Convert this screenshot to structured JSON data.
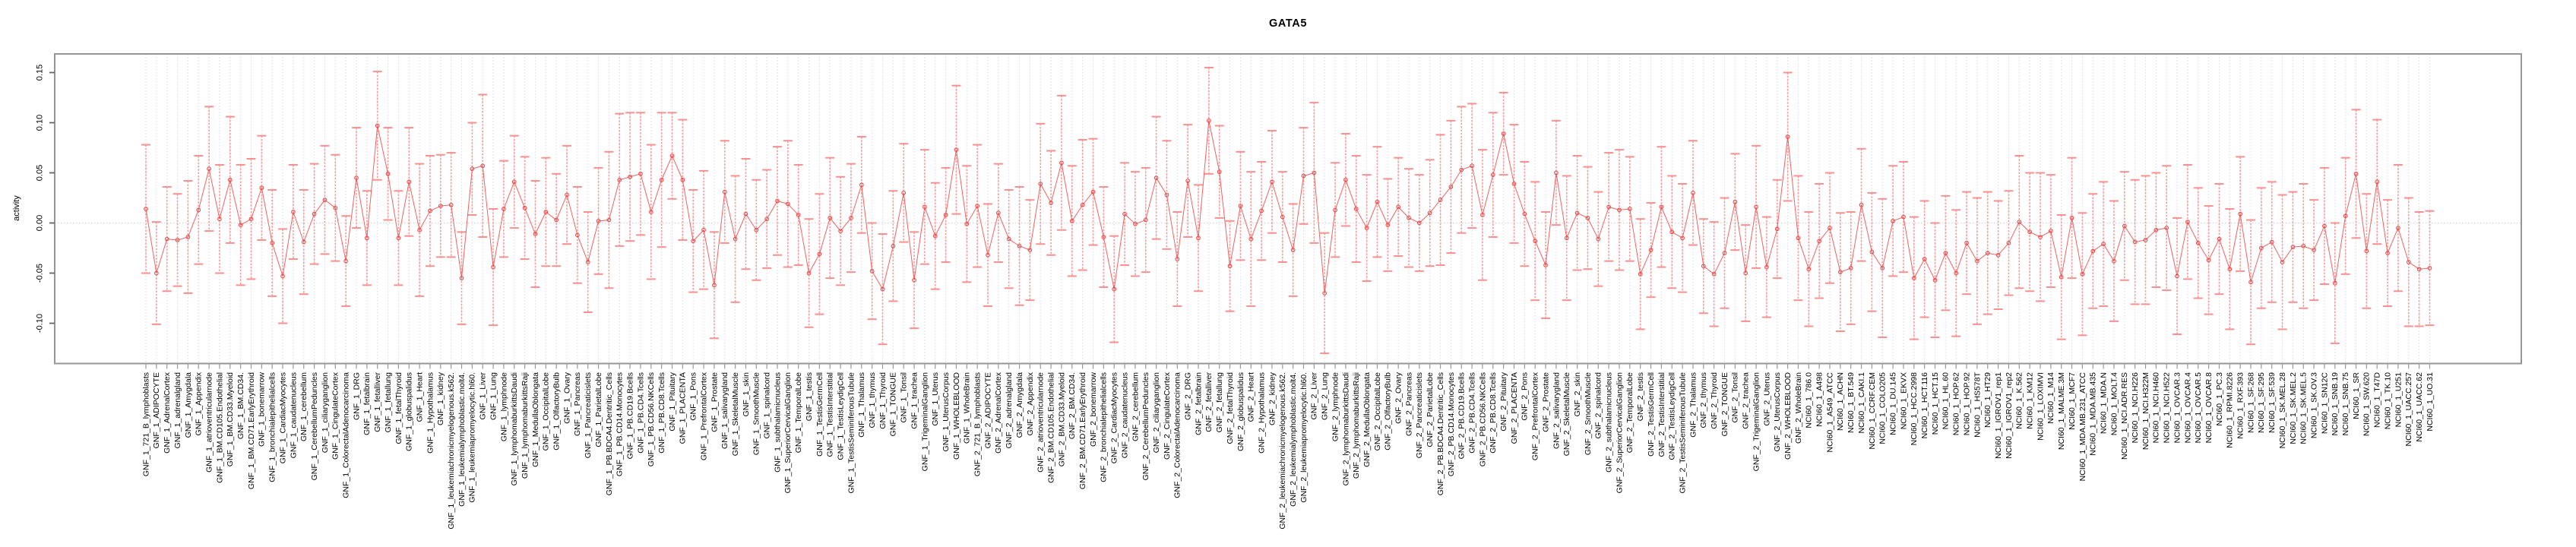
{
  "chart_data": {
    "type": "line",
    "subtype": "points-with-error-bars",
    "title": "GATA5",
    "ylabel": "activity",
    "xlabel": "",
    "legend_position": "none",
    "grid": {
      "vertical_dotted_per_category": true,
      "horizontal_zero_line_dotted": true
    },
    "ylim": [
      -0.139,
      0.169
    ],
    "ytick_values": [
      -0.1,
      -0.05,
      0.0,
      0.05,
      0.1,
      0.15
    ],
    "ytick_labels": [
      "-0.10",
      "-0.05",
      "0.00",
      "0.05",
      "0.10",
      "0.15"
    ],
    "colors": {
      "series_line": "#f0504f",
      "marker_stroke": "#ee4747",
      "error_bar": "#f89c9c",
      "error_cap": "#f89090",
      "gridline": "#dedede",
      "zero_line": "#d6d6d6",
      "plot_border": "#969696",
      "y_tick": "#666666",
      "x_tick": "#999999",
      "label_text": "#000000"
    },
    "categories": [
      "GNF_1_721_B_lymphoblasts",
      "GNF_1_ADIPOCYTE",
      "GNF_1_AdrenalCortex",
      "GNF_1_adrenalgland",
      "GNF_1_Amygdala",
      "GNF_1_Appendix",
      "GNF_1_atrioventricularnode",
      "GNF_1_BM.CD105.Endothelial",
      "GNF_1_BM.CD33.Myeloid",
      "GNF_1_BM.CD34.",
      "GNF_1_BM.CD71.EarlyErythroid",
      "GNF_1_bonemarrow",
      "GNF_1_bronchialepithelialcells",
      "GNF_1_CardiacMyocytes",
      "GNF_1_caudatenucleus",
      "GNF_1_cerebellum",
      "GNF_1_CerebellumPeduncles",
      "GNF_1_ciliaryganglion",
      "GNF_1_CingulateCortex",
      "GNF_1_ColorectalAdenocarcinoma",
      "GNF_1_DRG",
      "GNF_1_fetalbrain",
      "GNF_1_fetalliver",
      "GNF_1_fetallung",
      "GNF_1_fetalThyroid",
      "GNF_1_globuspalidus",
      "GNF_1_Heart",
      "GNF_1_Hypothalamus",
      "GNF_1_kidney",
      "GNF_1_leukemiachronicmyelogenous.k562.",
      "GNF_1_leukemialymphoblastic.molt4.",
      "GNF_1_leukemiapromyelocytic.hl60.",
      "GNF_1_Liver",
      "GNF_1_Lung",
      "GNF_1_lymphnode",
      "GNF_1_lymphomaburkittsDaudi",
      "GNF_1_lymphomaburkittsRaji",
      "GNF_1_MedullaOblongata",
      "GNF_1_OccipitalLobe",
      "GNF_1_OlfactoryBulb",
      "GNF_1_Ovary",
      "GNF_1_Pancreas",
      "GNF_1_Pancreaticislets",
      "GNF_1_ParietalLobe",
      "GNF_1_PB.BDCA4.Dentritic_Cells",
      "GNF_1_PB.CD14.Monocytes",
      "GNF_1_PB.CD19.Bcells",
      "GNF_1_PB.CD4.Tcells",
      "GNF_1_PB.CD56.NKCells",
      "GNF_1_PB.CD8.Tcells",
      "GNF_1_Pituitary",
      "GNF_1_PLACENTA",
      "GNF_1_Pons",
      "GNF_1_PrefrontalCortex",
      "GNF_1_Prostate",
      "GNF_1_salivarygland",
      "GNF_1_SkeletalMuscle",
      "GNF_1_skin",
      "GNF_1_SmoothMuscle",
      "GNF_1_spinalcord",
      "GNF_1_subthalamicnucleus",
      "GNF_1_SuperiorCervicalGanglion",
      "GNF_1_TemporalLobe",
      "GNF_1_testis",
      "GNF_1_TestisGermCell",
      "GNF_1_TestisInterstitial",
      "GNF_1_TestisLeydigCell",
      "GNF_1_TestisSeminiferousTubule",
      "GNF_1_Thalamus",
      "GNF_1_thymus",
      "GNF_1_Thyroid",
      "GNF_1_TONGUE",
      "GNF_1_Tonsil",
      "GNF_1_trachea",
      "GNF_1_TrigeminalGanglion",
      "GNF_1_Uterus",
      "GNF_1_UterusCorpus",
      "GNF_1_WHOLEBLOOD",
      "GNF_1_WholeBrain",
      "GNF_2_721_B_lymphoblasts",
      "GNF_2_ADIPOCYTE",
      "GNF_2_AdrenalCortex",
      "GNF_2_adrenalgland",
      "GNF_2_Amygdala",
      "GNF_2_Appendix",
      "GNF_2_atrioventricularnode",
      "GNF_2_BM.CD105.Endothelial",
      "GNF_2_BM.CD33.Myeloid",
      "GNF_2_BM.CD34.",
      "GNF_2_BM.CD71.EarlyErythroid",
      "GNF_2_bonemarrow",
      "GNF_2_bronchialepithelialcells",
      "GNF_2_CardiacMyocytes",
      "GNF_2_caudatenucleus",
      "GNF_2_cerebellum",
      "GNF_2_CerebellumPeduncles",
      "GNF_2_ciliaryganglion",
      "GNF_2_CingulateCortex",
      "GNF_2_ColorectalAdenocarcinoma",
      "GNF_2_DRG",
      "GNF_2_fetalbrain",
      "GNF_2_fetalliver",
      "GNF_2_fetallung",
      "GNF_2_fetalThyroid",
      "GNF_2_globuspalidus",
      "GNF_2_Heart",
      "GNF_2_Hypothalamus",
      "GNF_2_kidney",
      "GNF_2_leukemiachronicmyelogenous.k562.",
      "GNF_2_leukemialymphoblastic.molt4.",
      "GNF_2_leukemiapromyelocytic.hl60.",
      "GNF_2_Liver",
      "GNF_2_Lung",
      "GNF_2_lymphnode",
      "GNF_2_lymphomaburkittsDaudi",
      "GNF_2_lymphomaburkittsRaji",
      "GNF_2_MedullaOblongata",
      "GNF_2_OccipitalLobe",
      "GNF_2_OlfactoryBulb",
      "GNF_2_Ovary",
      "GNF_2_Pancreas",
      "GNF_2_Pancreaticislets",
      "GNF_2_ParietalLobe",
      "GNF_2_PB.BDCA4.Dentritic_Cells",
      "GNF_2_PB.CD14.Monocytes",
      "GNF_2_PB.CD19.Bcells",
      "GNF_2_PB.CD4.Tcells",
      "GNF_2_PB.CD56.NKCells",
      "GNF_2_PB.CD8.Tcells",
      "GNF_2_Pituitary",
      "GNF_2_PLACENTA",
      "GNF_2_Pons",
      "GNF_2_PrefrontalCortex",
      "GNF_2_Prostate",
      "GNF_2_salivarygland",
      "GNF_2_SkeletalMuscle",
      "GNF_2_skin",
      "GNF_2_SmoothMuscle",
      "GNF_2_spinalcord",
      "GNF_2_subthalamicnucleus",
      "GNF_2_SuperiorCervicalGanglion",
      "GNF_2_TemporalLobe",
      "GNF_2_testis",
      "GNF_2_TestisGermCell",
      "GNF_2_TestisInterstitial",
      "GNF_2_TestisLeydigCell",
      "GNF_2_TestisSeminiferousTubule",
      "GNF_2_Thalamus",
      "GNF_2_thymus",
      "GNF_2_Thyroid",
      "GNF_2_TONGUE",
      "GNF_2_Tonsil",
      "GNF_2_trachea",
      "GNF_2_TrigeminalGanglion",
      "GNF_2_Uterus",
      "GNF_2_UterusCorpus",
      "GNF_2_WHOLEBLOOD",
      "GNF_2_WholeBrain",
      "NCI60_1_786.0",
      "NCI60_1_A498",
      "NCI60_1_A549_ATCC",
      "NCI60_1_ACHN",
      "NCI60_1_BT.549",
      "NCI60_1_CAKI.1",
      "NCI60_1_CCRF.CEM",
      "NCI60_1_COLO205",
      "NCI60_1_DU.145",
      "NCI60_1_EKVX",
      "NCI60_1_HCC.2998",
      "NCI60_1_HCT.116",
      "NCI60_1_HCT.15",
      "NCI60_1_HL.60",
      "NCI60_1_HOP.62",
      "NCI60_1_HOP.92",
      "NCI60_1_HS578T",
      "NCI60_1_HT29",
      "NCI60_1_IGROV1_rep1",
      "NCI60_1_IGROV1_rep2",
      "NCI60_1_K.562",
      "NCI60_1_KM12",
      "NCI60_1_LOXIMVI",
      "NCI60_1_M14",
      "NCI60_1_MALME.3M",
      "NCI60_1_MCF7",
      "NCI60_1_MDA.MB.231_ATCC",
      "NCI60_1_MDA.MB.435",
      "NCI60_1_MDA.N",
      "NCI60_1_MOLT.4",
      "NCI60_1_NCI.ADR.RES",
      "NCI60_1_NCI.H226",
      "NCI60_1_NCI.H322M",
      "NCI60_1_NCI.H460",
      "NCI60_1_NCI.H522",
      "NCI60_1_OVCAR.3",
      "NCI60_1_OVCAR.4",
      "NCI60_1_OVCAR.5",
      "NCI60_1_OVCAR.8",
      "NCI60_1_PC.3",
      "NCI60_1_RPMI.8226",
      "NCI60_1_RXF.393",
      "NCI60_1_SF.268",
      "NCI60_1_SF.295",
      "NCI60_1_SF.539",
      "NCI60_1_SK.MEL.28",
      "NCI60_1_SK.MEL.2",
      "NCI60_1_SK.MEL.5",
      "NCI60_1_SK.OV.3",
      "NCI60_1_SN12C",
      "NCI60_1_SNB.19",
      "NCI60_1_SNB.75",
      "NCI60_1_SR",
      "NCI60_1_SW.620",
      "NCI60_1_T47D",
      "NCI60_1_TK.10",
      "NCI60_1_U251",
      "NCI60_1_UACC.257",
      "NCI60_1_UACC.62",
      "NCI60_1_UO.31"
    ],
    "values": [
      0.014,
      -0.05,
      -0.016,
      -0.017,
      -0.014,
      0.013,
      0.054,
      0.004,
      0.043,
      -0.002,
      0.004,
      0.035,
      -0.02,
      -0.053,
      0.011,
      -0.019,
      0.009,
      0.023,
      0.015,
      -0.038,
      0.045,
      -0.015,
      0.097,
      0.049,
      -0.015,
      0.041,
      -0.007,
      0.012,
      0.017,
      0.018,
      -0.055,
      0.054,
      0.057,
      -0.044,
      0.014,
      0.041,
      0.015,
      -0.011,
      0.011,
      0.003,
      0.028,
      -0.012,
      -0.039,
      0.002,
      0.003,
      0.043,
      0.046,
      0.049,
      0.011,
      0.043,
      0.067,
      0.043,
      -0.018,
      -0.007,
      -0.062,
      0.031,
      -0.016,
      0.009,
      -0.007,
      0.004,
      0.022,
      0.019,
      0.008,
      -0.05,
      -0.031,
      0.005,
      -0.008,
      0.005,
      0.038,
      -0.048,
      -0.066,
      -0.023,
      0.03,
      -0.057,
      0.016,
      -0.013,
      0.008,
      0.073,
      -0.001,
      0.017,
      -0.032,
      0.01,
      -0.016,
      -0.023,
      -0.027,
      0.039,
      0.02,
      0.06,
      0.002,
      0.018,
      0.031,
      -0.014,
      -0.066,
      0.009,
      -0.001,
      0.003,
      0.045,
      0.028,
      -0.036,
      0.042,
      -0.015,
      0.102,
      0.051,
      -0.043,
      0.017,
      -0.016,
      0.012,
      0.041,
      0.006,
      -0.027,
      0.047,
      0.05,
      -0.07,
      0.013,
      0.043,
      0.014,
      -0.005,
      0.021,
      -0.002,
      0.016,
      0.005,
      0.0,
      0.01,
      0.023,
      0.036,
      0.053,
      0.057,
      0.008,
      0.048,
      0.089,
      0.039,
      0.009,
      -0.018,
      -0.042,
      0.05,
      -0.015,
      0.01,
      0.005,
      -0.016,
      0.016,
      0.013,
      0.014,
      -0.051,
      -0.027,
      0.016,
      -0.009,
      -0.015,
      0.03,
      -0.043,
      -0.051,
      -0.03,
      0.021,
      -0.05,
      0.016,
      -0.044,
      -0.006,
      0.086,
      -0.015,
      -0.046,
      -0.018,
      -0.005,
      -0.049,
      -0.045,
      0.018,
      -0.029,
      -0.045,
      0.002,
      0.006,
      -0.055,
      -0.036,
      -0.057,
      -0.03,
      -0.05,
      -0.02,
      -0.038,
      -0.03,
      -0.032,
      -0.02,
      0.001,
      -0.009,
      -0.014,
      -0.008,
      -0.054,
      0.005,
      -0.051,
      -0.028,
      -0.021,
      -0.038,
      -0.003,
      -0.019,
      -0.017,
      -0.007,
      -0.005,
      -0.053,
      0.001,
      -0.02,
      -0.037,
      -0.016,
      -0.046,
      0.009,
      -0.059,
      -0.025,
      -0.019,
      -0.039,
      -0.024,
      -0.023,
      -0.027,
      -0.003,
      -0.06,
      0.007,
      0.049,
      -0.028,
      0.041,
      -0.03,
      -0.005,
      -0.039,
      -0.046,
      -0.045
    ],
    "errors": [
      0.064,
      0.051,
      0.052,
      0.046,
      0.056,
      0.054,
      0.062,
      0.054,
      0.063,
      0.06,
      0.06,
      0.052,
      0.053,
      0.047,
      0.047,
      0.052,
      0.05,
      0.054,
      0.053,
      0.045,
      0.05,
      0.047,
      0.054,
      0.046,
      0.047,
      0.054,
      0.066,
      0.055,
      0.051,
      0.052,
      0.046,
      0.046,
      0.071,
      0.058,
      0.048,
      0.046,
      0.051,
      0.053,
      0.054,
      0.046,
      0.049,
      0.048,
      0.05,
      0.053,
      0.068,
      0.066,
      0.064,
      0.061,
      0.067,
      0.067,
      0.043,
      0.06,
      0.051,
      0.059,
      0.053,
      0.051,
      0.063,
      0.055,
      0.05,
      0.049,
      0.054,
      0.063,
      0.05,
      0.054,
      0.06,
      0.06,
      0.054,
      0.054,
      0.048,
      0.048,
      0.055,
      0.055,
      0.049,
      0.048,
      0.057,
      0.053,
      0.047,
      0.064,
      0.058,
      0.061,
      0.051,
      0.049,
      0.049,
      0.059,
      0.05,
      0.06,
      0.052,
      0.067,
      0.055,
      0.065,
      0.053,
      0.05,
      0.053,
      0.051,
      0.052,
      0.052,
      0.061,
      0.054,
      0.047,
      0.056,
      0.053,
      0.053,
      0.046,
      0.045,
      0.054,
      0.067,
      0.049,
      0.051,
      0.045,
      0.046,
      0.048,
      0.07,
      0.06,
      0.047,
      0.046,
      0.053,
      0.053,
      0.055,
      0.046,
      0.049,
      0.049,
      0.048,
      0.053,
      0.065,
      0.066,
      0.063,
      0.062,
      0.065,
      0.062,
      0.041,
      0.059,
      0.052,
      0.059,
      0.053,
      0.052,
      0.062,
      0.057,
      0.051,
      0.047,
      0.054,
      0.06,
      0.052,
      0.055,
      0.047,
      0.06,
      0.056,
      0.054,
      0.052,
      0.047,
      0.052,
      0.055,
      0.048,
      0.048,
      0.061,
      0.05,
      0.049,
      0.064,
      0.062,
      0.057,
      0.057,
      0.055,
      0.059,
      0.056,
      0.056,
      0.059,
      0.069,
      0.055,
      0.055,
      0.061,
      0.058,
      0.057,
      0.057,
      0.063,
      0.051,
      0.063,
      0.061,
      0.054,
      0.052,
      0.066,
      0.059,
      0.064,
      0.056,
      0.062,
      0.06,
      0.061,
      0.057,
      0.062,
      0.06,
      0.054,
      0.062,
      0.064,
      0.057,
      0.062,
      0.058,
      0.057,
      0.055,
      0.054,
      0.055,
      0.06,
      0.057,
      0.062,
      0.06,
      0.06,
      0.067,
      0.055,
      0.062,
      0.05,
      0.058,
      0.06,
      0.058,
      0.064,
      0.057,
      0.062,
      0.053,
      0.063,
      0.064,
      0.057,
      0.057
    ]
  }
}
